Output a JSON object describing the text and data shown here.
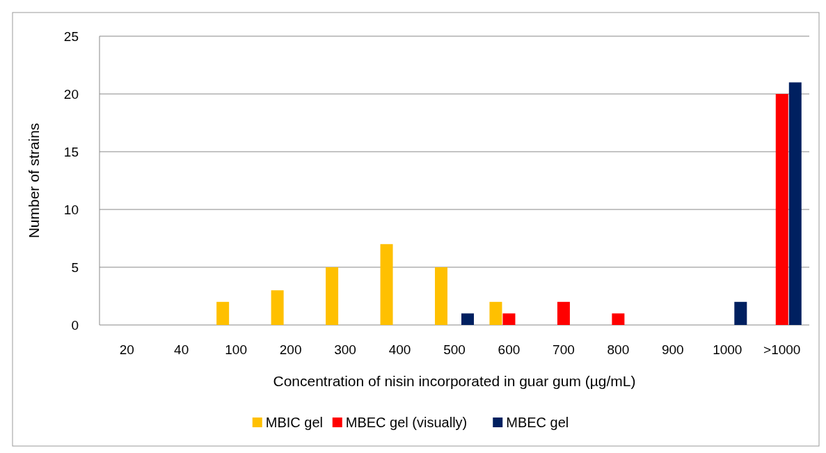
{
  "chart_data": {
    "type": "bar",
    "xlabel": "Concentration of nisin incorporated in guar gum (µg/mL)",
    "ylabel": "Number of strains",
    "categories": [
      "20",
      "40",
      "100",
      "200",
      "300",
      "400",
      "500",
      "600",
      "700",
      "800",
      "900",
      "1000",
      ">1000"
    ],
    "series": [
      {
        "name": "MBIC gel",
        "color": "#ffc000",
        "values": [
          0,
          0,
          2,
          3,
          5,
          7,
          5,
          2,
          0,
          0,
          0,
          0,
          0
        ]
      },
      {
        "name": "MBEC gel (visually)",
        "color": "#ff0000",
        "values": [
          0,
          0,
          0,
          0,
          0,
          0,
          0,
          1,
          2,
          1,
          0,
          0,
          20
        ]
      },
      {
        "name": "MBEC gel",
        "color": "#002060",
        "values": [
          0,
          0,
          0,
          0,
          0,
          0,
          1,
          0,
          0,
          0,
          0,
          2,
          21
        ]
      }
    ],
    "ylim": [
      0,
      25
    ],
    "yticks": [
      0,
      5,
      10,
      15,
      20,
      25
    ],
    "grid": "y",
    "legend": "bottom"
  }
}
